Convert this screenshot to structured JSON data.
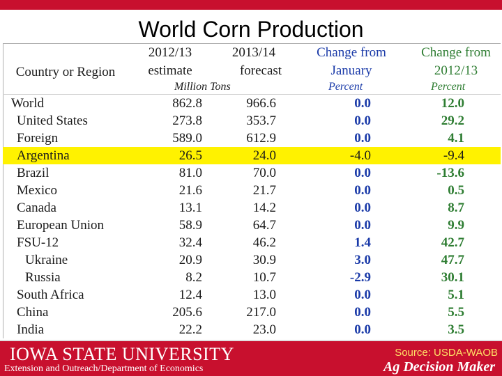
{
  "slide": {
    "title": "World Corn Production"
  },
  "table": {
    "headers": {
      "country": "Country or Region",
      "est_line1": "2012/13",
      "est_line2": "estimate",
      "fc_line1": "2013/14",
      "fc_line2": "forecast",
      "chg_line1": "Change from",
      "chg_line2": "January",
      "pct_line1": "Change from",
      "pct_line2": "2012/13"
    },
    "units": {
      "tons": "Million Tons",
      "chg": "Percent",
      "pct": "Percent"
    },
    "rows": [
      {
        "name": "World",
        "estimate": "862.8",
        "forecast": "966.6",
        "change_jan": "0.0",
        "change_prev": "12.0"
      },
      {
        "name": "United States",
        "estimate": "273.8",
        "forecast": "353.7",
        "change_jan": "0.0",
        "change_prev": "29.2"
      },
      {
        "name": "Foreign",
        "estimate": "589.0",
        "forecast": "612.9",
        "change_jan": "0.0",
        "change_prev": "4.1"
      },
      {
        "name": "Argentina",
        "estimate": "26.5",
        "forecast": "24.0",
        "change_jan": "-4.0",
        "change_prev": "-9.4"
      },
      {
        "name": "Brazil",
        "estimate": "81.0",
        "forecast": "70.0",
        "change_jan": "0.0",
        "change_prev": "-13.6"
      },
      {
        "name": "Mexico",
        "estimate": "21.6",
        "forecast": "21.7",
        "change_jan": "0.0",
        "change_prev": "0.5"
      },
      {
        "name": "Canada",
        "estimate": "13.1",
        "forecast": "14.2",
        "change_jan": "0.0",
        "change_prev": "8.7"
      },
      {
        "name": "European Union",
        "estimate": "58.9",
        "forecast": "64.7",
        "change_jan": "0.0",
        "change_prev": "9.9"
      },
      {
        "name": "FSU-12",
        "estimate": "32.4",
        "forecast": "46.2",
        "change_jan": "1.4",
        "change_prev": "42.7"
      },
      {
        "name": "Ukraine",
        "estimate": "20.9",
        "forecast": "30.9",
        "change_jan": "3.0",
        "change_prev": "47.7"
      },
      {
        "name": "Russia",
        "estimate": "8.2",
        "forecast": "10.7",
        "change_jan": "-2.9",
        "change_prev": "30.1"
      },
      {
        "name": "South Africa",
        "estimate": "12.4",
        "forecast": "13.0",
        "change_jan": "0.0",
        "change_prev": "5.1"
      },
      {
        "name": "China",
        "estimate": "205.6",
        "forecast": "217.0",
        "change_jan": "0.0",
        "change_prev": "5.5"
      },
      {
        "name": "India",
        "estimate": "22.2",
        "forecast": "23.0",
        "change_jan": "0.0",
        "change_prev": "3.5"
      }
    ]
  },
  "footer": {
    "logo_text": "IOWA STATE UNIVERSITY",
    "subtitle": "Extension and Outreach/Department of Economics",
    "source": "Source: USDA-WAOB",
    "brand": "Ag Decision Maker"
  },
  "colors": {
    "brand_red": "#c8102e",
    "highlight": "#fff200",
    "blue": "#1a3aa8",
    "green": "#2e7d32"
  }
}
